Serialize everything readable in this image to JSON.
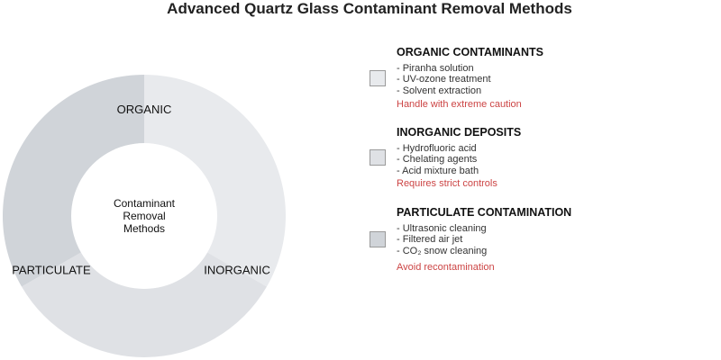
{
  "title": "Advanced Quartz Glass Contaminant Removal Methods",
  "colors": {
    "organic": "#e8eaed",
    "inorganic": "#dfe1e5",
    "particulate": "#d0d4d9",
    "caution": "#cc4444",
    "text": "#111111"
  },
  "chart_data": {
    "type": "pie",
    "center_label": [
      "Contaminant",
      "Removal",
      "Methods"
    ],
    "categories": [
      "ORGANIC",
      "INORGANIC",
      "PARTICULATE"
    ],
    "values": [
      1,
      1,
      1
    ]
  },
  "legend": [
    {
      "heading": "ORGANIC CONTAMINANTS",
      "items": [
        "- Piranha solution",
        "- UV-ozone treatment",
        "- Solvent extraction"
      ],
      "note": "Handle with extreme caution"
    },
    {
      "heading": "INORGANIC DEPOSITS",
      "items": [
        "- Hydrofluoric acid",
        "- Chelating agents",
        "- Acid mixture bath"
      ],
      "note": "Requires strict controls"
    },
    {
      "heading": "PARTICULATE CONTAMINATION",
      "items": [
        "- Ultrasonic cleaning",
        "- Filtered air jet",
        "- CO₂ snow cleaning"
      ],
      "note": "Avoid recontamination"
    }
  ]
}
